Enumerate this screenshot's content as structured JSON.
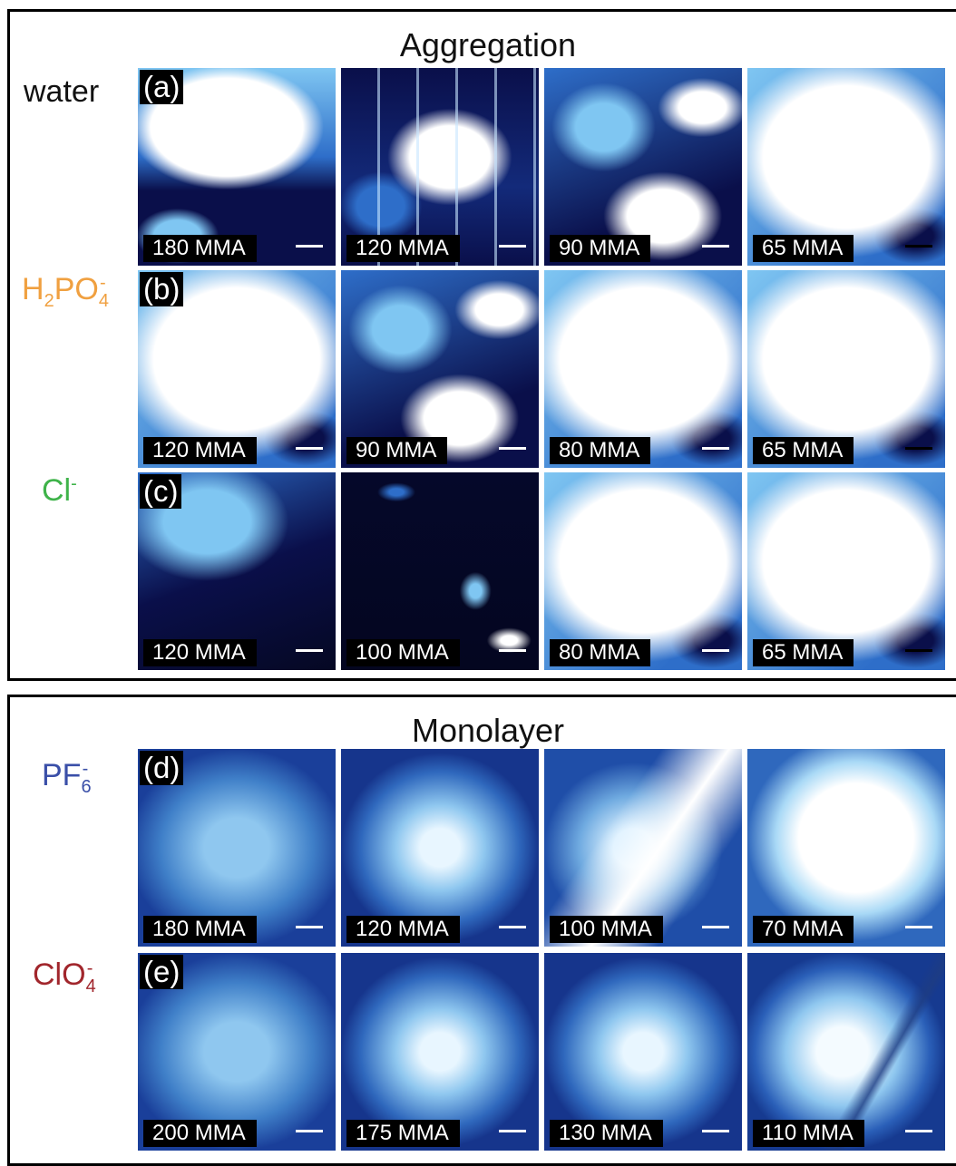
{
  "sections": [
    {
      "title": "Aggregation",
      "rows": [
        {
          "label_main": "water",
          "label_sub": "",
          "label_sub2": "",
          "label_sup": "",
          "label_color": "#111111",
          "letter": "(a)",
          "captions": [
            "180 MMA",
            "120 MMA",
            "90 MMA",
            "65 MMA"
          ]
        },
        {
          "label_main": "H",
          "label_sub": "2",
          "label_mid": "PO",
          "label_sub2": "4",
          "label_sup": "-",
          "label_color": "#F0A040",
          "letter": "(b)",
          "captions": [
            "120 MMA",
            "90 MMA",
            "80 MMA",
            "65 MMA"
          ]
        },
        {
          "label_main": "Cl",
          "label_sub": "",
          "label_sub2": "",
          "label_sup": "-",
          "label_color": "#3FB34A",
          "letter": "(c)",
          "captions": [
            "120 MMA",
            "100 MMA",
            "80 MMA",
            "65 MMA"
          ]
        }
      ]
    },
    {
      "title": "Monolayer",
      "rows": [
        {
          "label_main": "PF",
          "label_sub": "",
          "label_sub2": "6",
          "label_sup": "-",
          "label_color": "#3A4FA8",
          "letter": "(d)",
          "captions": [
            "180 MMA",
            "120 MMA",
            "100 MMA",
            "70 MMA"
          ]
        },
        {
          "label_main": "ClO",
          "label_sub": "",
          "label_sub2": "4",
          "label_sup": "-",
          "label_color": "#A1262C",
          "letter": "(e)",
          "captions": [
            "200 MMA",
            "175 MMA",
            "130 MMA",
            "110 MMA"
          ]
        }
      ]
    }
  ],
  "tile_styles": [
    [
      "agg-white-top",
      "agg-streaks",
      "agg-mixed",
      "agg-bright"
    ],
    [
      "agg-bright",
      "agg-mixed",
      "agg-bright",
      "agg-bright"
    ],
    [
      "agg-dark-topleft",
      "agg-very-dark",
      "agg-bright",
      "agg-bright"
    ],
    [
      "mono-dim",
      "mono-medium",
      "mono-bright-streak",
      "mono-very-bright"
    ],
    [
      "mono-dim",
      "mono-medium",
      "mono-medium",
      "mono-streak"
    ]
  ],
  "colors": {
    "dark_blue": "#0A0F4A",
    "mid_blue": "#2E6EC9",
    "light_blue": "#7FC6F2",
    "white": "#FFFFFF"
  }
}
